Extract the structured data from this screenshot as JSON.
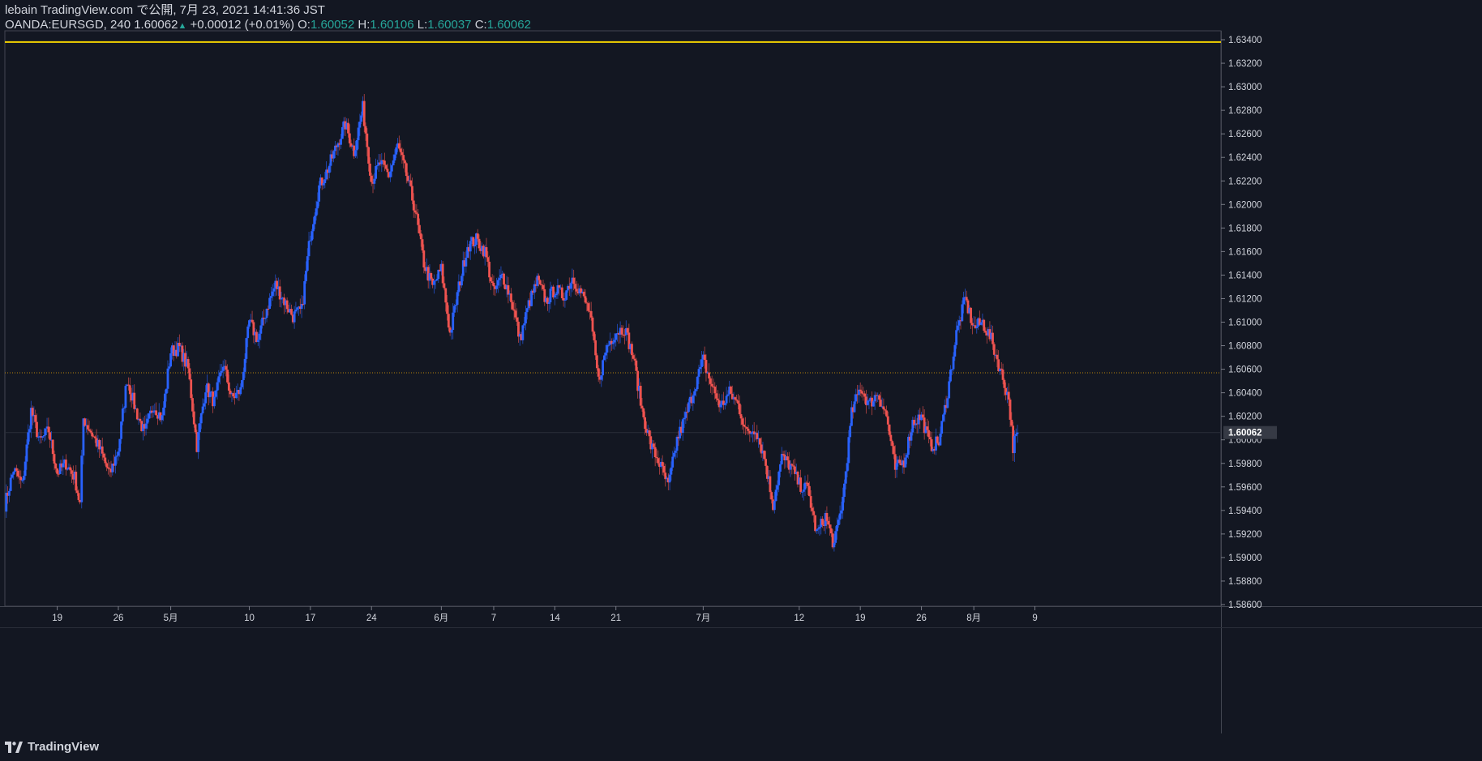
{
  "header": {
    "publish_line": "lebain TradingView.com で公開, 7月 23, 2021 14:41:36 JST",
    "symbol": "OANDA:EURSGD, 240",
    "last": "1.60062",
    "change": "+0.00012 (+0.01%)",
    "o_label": "O:",
    "o_value": "1.60052",
    "h_label": "H:",
    "h_value": "1.60106",
    "l_label": "L:",
    "l_value": "1.60037",
    "c_label": "C:",
    "c_value": "1.60062"
  },
  "logo": {
    "text": "TradingView",
    "icon": "tradingview-logo-icon"
  },
  "colors": {
    "background": "#131722",
    "up": "#2962ff",
    "down": "#ef5350",
    "horizontal_line": "#f5d400",
    "dotted_line": "#b8860b",
    "axis": "#787b86",
    "text": "#d1d4dc",
    "price_label_bg": "#363a45"
  },
  "chart_data": {
    "type": "candlestick",
    "symbol": "OANDA:EURSGD",
    "interval": "240",
    "y_axis": {
      "min": 1.586,
      "max": 1.635,
      "ticks": [
        "1.63400",
        "1.63200",
        "1.63000",
        "1.62800",
        "1.62600",
        "1.62400",
        "1.62200",
        "1.62000",
        "1.61800",
        "1.61600",
        "1.61400",
        "1.61200",
        "1.61000",
        "1.60800",
        "1.60600",
        "1.60400",
        "1.60200",
        "1.60000",
        "1.59800",
        "1.59600",
        "1.59400",
        "1.59200",
        "1.59000",
        "1.58800",
        "1.58600"
      ],
      "current_price_label": "1.60062"
    },
    "x_axis": {
      "range_days": [
        -1,
        120
      ],
      "ticks": [
        {
          "label": "19",
          "day": 5
        },
        {
          "label": "26",
          "day": 12
        },
        {
          "label": "5月",
          "day": 18
        },
        {
          "label": "10",
          "day": 27
        },
        {
          "label": "17",
          "day": 34
        },
        {
          "label": "24",
          "day": 41
        },
        {
          "label": "6月",
          "day": 49
        },
        {
          "label": "7",
          "day": 55
        },
        {
          "label": "14",
          "day": 62
        },
        {
          "label": "21",
          "day": 69
        },
        {
          "label": "7月",
          "day": 79
        },
        {
          "label": "12",
          "day": 90
        },
        {
          "label": "19",
          "day": 97
        },
        {
          "label": "26",
          "day": 104
        },
        {
          "label": "8月",
          "day": 110
        },
        {
          "label": "9",
          "day": 117
        }
      ]
    },
    "horizontal_lines": [
      {
        "price": 1.6338,
        "style": "solid"
      },
      {
        "price": 1.6057,
        "style": "dotted"
      }
    ],
    "current_price": 1.60062,
    "series": [
      {
        "day": -1,
        "close": 1.5945
      },
      {
        "day": 0,
        "close": 1.5975
      },
      {
        "day": 1,
        "close": 1.5962
      },
      {
        "day": 2,
        "close": 1.6025
      },
      {
        "day": 3,
        "close": 1.5998
      },
      {
        "day": 4,
        "close": 1.6008
      },
      {
        "day": 5,
        "close": 1.5972
      },
      {
        "day": 6,
        "close": 1.598
      },
      {
        "day": 7,
        "close": 1.5968
      },
      {
        "day": 7.6,
        "close": 1.5945
      },
      {
        "day": 8,
        "close": 1.6018
      },
      {
        "day": 9,
        "close": 1.6005
      },
      {
        "day": 10,
        "close": 1.599
      },
      {
        "day": 11,
        "close": 1.597
      },
      {
        "day": 12,
        "close": 1.5992
      },
      {
        "day": 13,
        "close": 1.6052
      },
      {
        "day": 14,
        "close": 1.6025
      },
      {
        "day": 15,
        "close": 1.6005
      },
      {
        "day": 16,
        "close": 1.603
      },
      {
        "day": 17,
        "close": 1.6018
      },
      {
        "day": 18,
        "close": 1.6075
      },
      {
        "day": 19,
        "close": 1.6078
      },
      {
        "day": 20,
        "close": 1.606
      },
      {
        "day": 21,
        "close": 1.5995
      },
      {
        "day": 22,
        "close": 1.6045
      },
      {
        "day": 23,
        "close": 1.6032
      },
      {
        "day": 24,
        "close": 1.6065
      },
      {
        "day": 25,
        "close": 1.6035
      },
      {
        "day": 26,
        "close": 1.6042
      },
      {
        "day": 27,
        "close": 1.61
      },
      {
        "day": 28,
        "close": 1.6085
      },
      {
        "day": 29,
        "close": 1.6112
      },
      {
        "day": 30,
        "close": 1.6132
      },
      {
        "day": 31,
        "close": 1.6118
      },
      {
        "day": 32,
        "close": 1.6105
      },
      {
        "day": 33,
        "close": 1.611
      },
      {
        "day": 34,
        "close": 1.6175
      },
      {
        "day": 35,
        "close": 1.6215
      },
      {
        "day": 36,
        "close": 1.623
      },
      {
        "day": 37,
        "close": 1.625
      },
      {
        "day": 38,
        "close": 1.6268
      },
      {
        "day": 39,
        "close": 1.6245
      },
      {
        "day": 40,
        "close": 1.6282
      },
      {
        "day": 41,
        "close": 1.622
      },
      {
        "day": 42,
        "close": 1.6235
      },
      {
        "day": 43,
        "close": 1.6225
      },
      {
        "day": 44,
        "close": 1.625
      },
      {
        "day": 45,
        "close": 1.6225
      },
      {
        "day": 46,
        "close": 1.6195
      },
      {
        "day": 47,
        "close": 1.615
      },
      {
        "day": 48,
        "close": 1.613
      },
      {
        "day": 49,
        "close": 1.6145
      },
      {
        "day": 50,
        "close": 1.609
      },
      {
        "day": 51,
        "close": 1.613
      },
      {
        "day": 52,
        "close": 1.6165
      },
      {
        "day": 53,
        "close": 1.617
      },
      {
        "day": 54,
        "close": 1.616
      },
      {
        "day": 55,
        "close": 1.6125
      },
      {
        "day": 56,
        "close": 1.614
      },
      {
        "day": 57,
        "close": 1.612
      },
      {
        "day": 58,
        "close": 1.6085
      },
      {
        "day": 59,
        "close": 1.6115
      },
      {
        "day": 60,
        "close": 1.6135
      },
      {
        "day": 61,
        "close": 1.6118
      },
      {
        "day": 62,
        "close": 1.6128
      },
      {
        "day": 63,
        "close": 1.6122
      },
      {
        "day": 64,
        "close": 1.6138
      },
      {
        "day": 65,
        "close": 1.6125
      },
      {
        "day": 66,
        "close": 1.6108
      },
      {
        "day": 67,
        "close": 1.605
      },
      {
        "day": 68,
        "close": 1.608
      },
      {
        "day": 69,
        "close": 1.6092
      },
      {
        "day": 70,
        "close": 1.6095
      },
      {
        "day": 71,
        "close": 1.607
      },
      {
        "day": 72,
        "close": 1.6025
      },
      {
        "day": 73,
        "close": 1.5995
      },
      {
        "day": 74,
        "close": 1.598
      },
      {
        "day": 75,
        "close": 1.596
      },
      {
        "day": 76,
        "close": 1.6
      },
      {
        "day": 77,
        "close": 1.602
      },
      {
        "day": 78,
        "close": 1.6045
      },
      {
        "day": 79,
        "close": 1.6068
      },
      {
        "day": 80,
        "close": 1.6045
      },
      {
        "day": 81,
        "close": 1.6028
      },
      {
        "day": 82,
        "close": 1.604
      },
      {
        "day": 83,
        "close": 1.603
      },
      {
        "day": 84,
        "close": 1.6005
      },
      {
        "day": 85,
        "close": 1.601
      },
      {
        "day": 86,
        "close": 1.5985
      },
      {
        "day": 87,
        "close": 1.5945
      },
      {
        "day": 88,
        "close": 1.5985
      },
      {
        "day": 89,
        "close": 1.5978
      },
      {
        "day": 90,
        "close": 1.5962
      },
      {
        "day": 91,
        "close": 1.5958
      },
      {
        "day": 92,
        "close": 1.592
      },
      {
        "day": 93,
        "close": 1.5935
      },
      {
        "day": 94,
        "close": 1.591
      },
      {
        "day": 95,
        "close": 1.595
      },
      {
        "day": 96,
        "close": 1.6022
      },
      {
        "day": 97,
        "close": 1.6045
      },
      {
        "day": 98,
        "close": 1.603
      },
      {
        "day": 99,
        "close": 1.604
      },
      {
        "day": 100,
        "close": 1.602
      },
      {
        "day": 101,
        "close": 1.5975
      },
      {
        "day": 102,
        "close": 1.5982
      },
      {
        "day": 103,
        "close": 1.6015
      },
      {
        "day": 104,
        "close": 1.602
      },
      {
        "day": 105,
        "close": 1.5995
      },
      {
        "day": 106,
        "close": 1.5998
      },
      {
        "day": 107,
        "close": 1.604
      },
      {
        "day": 108,
        "close": 1.609
      },
      {
        "day": 109,
        "close": 1.612
      },
      {
        "day": 110,
        "close": 1.6095
      },
      {
        "day": 111,
        "close": 1.61
      },
      {
        "day": 112,
        "close": 1.6085
      },
      {
        "day": 113,
        "close": 1.606
      },
      {
        "day": 114,
        "close": 1.6035
      },
      {
        "day": 114.5,
        "close": 1.59945
      },
      {
        "day": 115,
        "close": 1.60062
      }
    ]
  }
}
